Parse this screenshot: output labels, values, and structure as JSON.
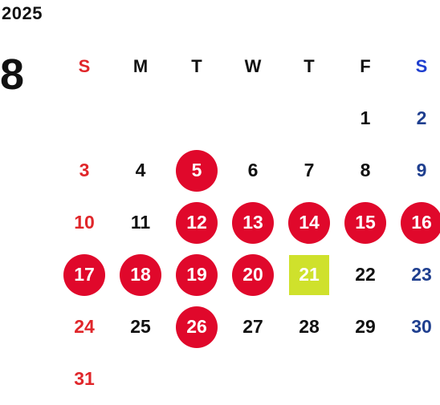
{
  "calendar": {
    "year": "2025",
    "month": "8",
    "weekdays": [
      "S",
      "M",
      "T",
      "W",
      "T",
      "F",
      "S"
    ],
    "first_weekday_index": 5,
    "days": [
      "1",
      "2",
      "3",
      "4",
      "5",
      "6",
      "7",
      "8",
      "9",
      "10",
      "11",
      "12",
      "13",
      "14",
      "15",
      "16",
      "17",
      "18",
      "19",
      "20",
      "21",
      "22",
      "23",
      "24",
      "25",
      "26",
      "27",
      "28",
      "29",
      "30",
      "31"
    ],
    "highlighted_days": [
      5,
      12,
      13,
      14,
      15,
      16,
      17,
      18,
      19,
      20,
      26
    ],
    "today": 21
  },
  "colors": {
    "highlight_circle": "#e0082b",
    "today_square": "#cfe12c",
    "sunday_text": "#e0262a",
    "saturday_text": "#1f3f8f",
    "saturday_header": "#1f3fcf",
    "default_text": "#111111"
  }
}
